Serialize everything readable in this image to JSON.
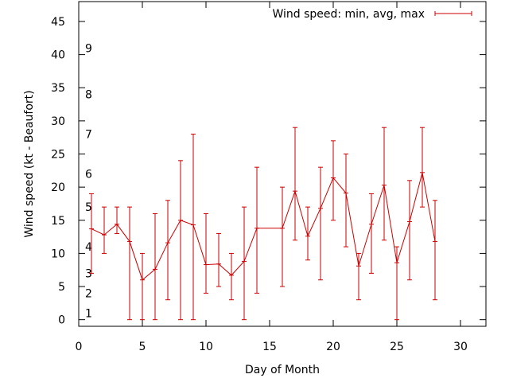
{
  "chart_data": {
    "type": "line",
    "series_style": "errorbar",
    "title": "",
    "xlabel": "Day of Month",
    "ylabel": "Wind speed (kt - Beaufort)",
    "xlim": [
      0,
      32
    ],
    "ylim": [
      -1,
      48
    ],
    "xticks": [
      0,
      5,
      10,
      15,
      20,
      25,
      30
    ],
    "yticks": [
      0,
      5,
      10,
      15,
      20,
      25,
      30,
      35,
      40,
      45
    ],
    "grid": false,
    "legend_position": "top-right",
    "beaufort_labels": [
      {
        "label": "1",
        "y": 1
      },
      {
        "label": "2",
        "y": 4
      },
      {
        "label": "3",
        "y": 7
      },
      {
        "label": "4",
        "y": 11
      },
      {
        "label": "5",
        "y": 17
      },
      {
        "label": "6",
        "y": 22
      },
      {
        "label": "7",
        "y": 28
      },
      {
        "label": "8",
        "y": 34
      },
      {
        "label": "9",
        "y": 41
      }
    ],
    "colors": {
      "series": "#cc0000",
      "axis": "#000000"
    },
    "series": [
      {
        "name": "Wind speed: min, avg, max",
        "points": [
          {
            "x": 1,
            "avg": 13.7,
            "min": 7,
            "max": 19
          },
          {
            "x": 2,
            "avg": 12.8,
            "min": 10,
            "max": 17
          },
          {
            "x": 3,
            "avg": 14.4,
            "min": 13,
            "max": 17
          },
          {
            "x": 4,
            "avg": 11.8,
            "min": 0,
            "max": 17
          },
          {
            "x": 5,
            "avg": 6.0,
            "min": 0,
            "max": 10
          },
          {
            "x": 6,
            "avg": 7.6,
            "min": 0,
            "max": 16
          },
          {
            "x": 7,
            "avg": 11.6,
            "min": 3,
            "max": 18
          },
          {
            "x": 8,
            "avg": 15.0,
            "min": 0,
            "max": 24
          },
          {
            "x": 9,
            "avg": 14.3,
            "min": 0,
            "max": 28
          },
          {
            "x": 10,
            "avg": 8.3,
            "min": 4,
            "max": 16
          },
          {
            "x": 11,
            "avg": 8.4,
            "min": 5,
            "max": 13
          },
          {
            "x": 12,
            "avg": 6.7,
            "min": 3,
            "max": 10
          },
          {
            "x": 13,
            "avg": 8.8,
            "min": 0,
            "max": 17
          },
          {
            "x": 14,
            "avg": 13.8,
            "min": 4,
            "max": 23
          },
          {
            "x": 16,
            "avg": 13.8,
            "min": 5,
            "max": 20
          },
          {
            "x": 17,
            "avg": 19.4,
            "min": 12,
            "max": 29
          },
          {
            "x": 18,
            "avg": 12.6,
            "min": 9,
            "max": 17
          },
          {
            "x": 19,
            "avg": 16.8,
            "min": 6,
            "max": 23
          },
          {
            "x": 20,
            "avg": 21.4,
            "min": 15,
            "max": 27
          },
          {
            "x": 21,
            "avg": 19.1,
            "min": 11,
            "max": 25
          },
          {
            "x": 22,
            "avg": 8.1,
            "min": 3,
            "max": 10
          },
          {
            "x": 23,
            "avg": 14.4,
            "min": 7,
            "max": 19
          },
          {
            "x": 24,
            "avg": 20.3,
            "min": 12,
            "max": 29
          },
          {
            "x": 25,
            "avg": 8.6,
            "min": 0,
            "max": 11
          },
          {
            "x": 26,
            "avg": 14.8,
            "min": 6,
            "max": 21
          },
          {
            "x": 27,
            "avg": 22.2,
            "min": 17,
            "max": 29
          },
          {
            "x": 28,
            "avg": 11.8,
            "min": 3,
            "max": 18
          }
        ]
      }
    ]
  }
}
